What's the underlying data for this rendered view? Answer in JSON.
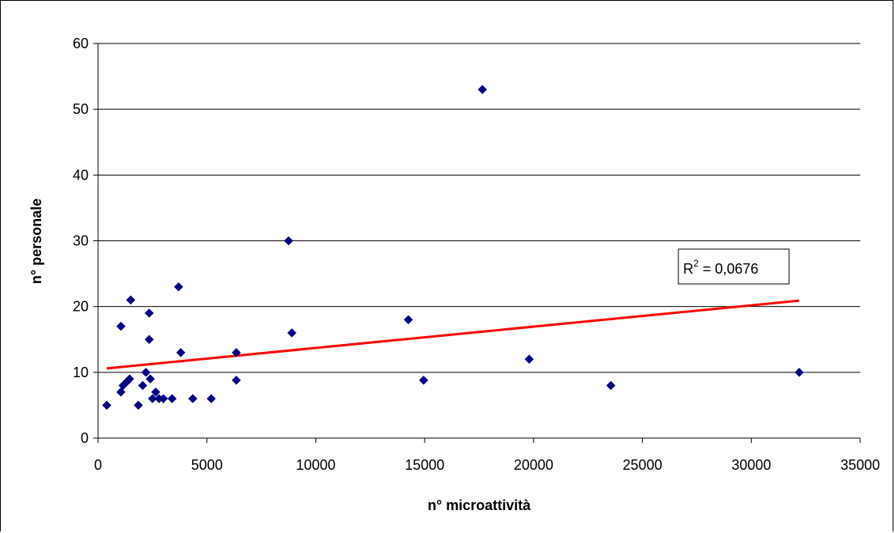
{
  "chart_data": {
    "type": "scatter",
    "xlabel": "n° microattività",
    "ylabel": "n° personale",
    "xlim": [
      0,
      35000
    ],
    "ylim": [
      0,
      60
    ],
    "x_ticks": [
      "0",
      "5000",
      "10000",
      "15000",
      "20000",
      "25000",
      "30000",
      "35000"
    ],
    "y_ticks": [
      "0",
      "10",
      "20",
      "30",
      "40",
      "50",
      "60"
    ],
    "grid": "horizontal",
    "series": [
      {
        "marker": "diamond",
        "color": "#000080",
        "points": [
          [
            400,
            5
          ],
          [
            1050,
            17
          ],
          [
            1050,
            7
          ],
          [
            1150,
            8
          ],
          [
            1300,
            8.5
          ],
          [
            1450,
            9
          ],
          [
            1500,
            21
          ],
          [
            1850,
            5
          ],
          [
            2050,
            8
          ],
          [
            2200,
            10
          ],
          [
            2350,
            19
          ],
          [
            2350,
            15
          ],
          [
            2400,
            9
          ],
          [
            2500,
            6
          ],
          [
            2650,
            7
          ],
          [
            2800,
            6
          ],
          [
            3000,
            6
          ],
          [
            3400,
            6
          ],
          [
            3700,
            23
          ],
          [
            3800,
            13
          ],
          [
            4350,
            6
          ],
          [
            5200,
            6
          ],
          [
            6350,
            13
          ],
          [
            6350,
            8.8
          ],
          [
            8750,
            30
          ],
          [
            8900,
            16
          ],
          [
            14250,
            18
          ],
          [
            14950,
            8.8
          ],
          [
            17650,
            53
          ],
          [
            19800,
            12
          ],
          [
            23550,
            8
          ],
          [
            32200,
            10
          ]
        ]
      }
    ],
    "trendline": {
      "color": "#ff0000",
      "x": [
        400,
        32200
      ],
      "y": [
        10.6,
        20.9
      ]
    },
    "annotation": {
      "prefix": "R",
      "sup": "2",
      "suffix": " = 0,0676"
    }
  }
}
